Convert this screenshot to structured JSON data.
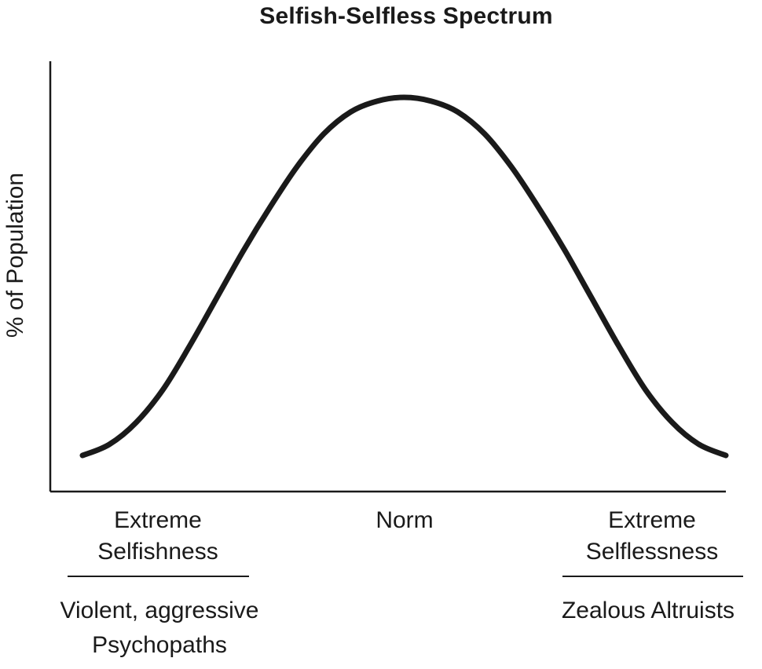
{
  "chart_data": {
    "type": "line",
    "title": "Selfish-Selfless Spectrum",
    "xlabel": "",
    "ylabel": "% of Population",
    "grid": false,
    "legend": "none",
    "x": [
      -3.0,
      -2.75,
      -2.5,
      -2.25,
      -2.0,
      -1.75,
      -1.5,
      -1.25,
      -1.0,
      -0.75,
      -0.5,
      -0.25,
      0.0,
      0.25,
      0.5,
      0.75,
      1.0,
      1.25,
      1.5,
      1.75,
      2.0,
      2.25,
      2.5,
      2.75,
      3.0
    ],
    "series": [
      {
        "values": [
          2,
          5,
          11,
          20,
          32,
          45,
          58,
          70,
          81,
          90,
          96,
          99,
          100,
          99,
          96,
          90,
          81,
          70,
          58,
          45,
          32,
          20,
          11,
          5,
          2
        ]
      }
    ],
    "xlim": [
      -3.0,
      3.0
    ],
    "ylim": [
      0,
      106
    ],
    "categories": [
      {
        "value": -3.0,
        "line1": "Extreme",
        "line2": "Selfishness",
        "description_line1": "Violent, aggressive",
        "description_line2": "Psychopaths"
      },
      {
        "value": 0.0,
        "line1": "Norm",
        "line2": "",
        "description_line1": "",
        "description_line2": ""
      },
      {
        "value": 3.0,
        "line1": "Extreme",
        "line2": "Selflessness",
        "description_line1": "Zealous Altruists",
        "description_line2": ""
      }
    ],
    "colors": {
      "ink": "#1a1a1a",
      "background": "#ffffff"
    }
  }
}
